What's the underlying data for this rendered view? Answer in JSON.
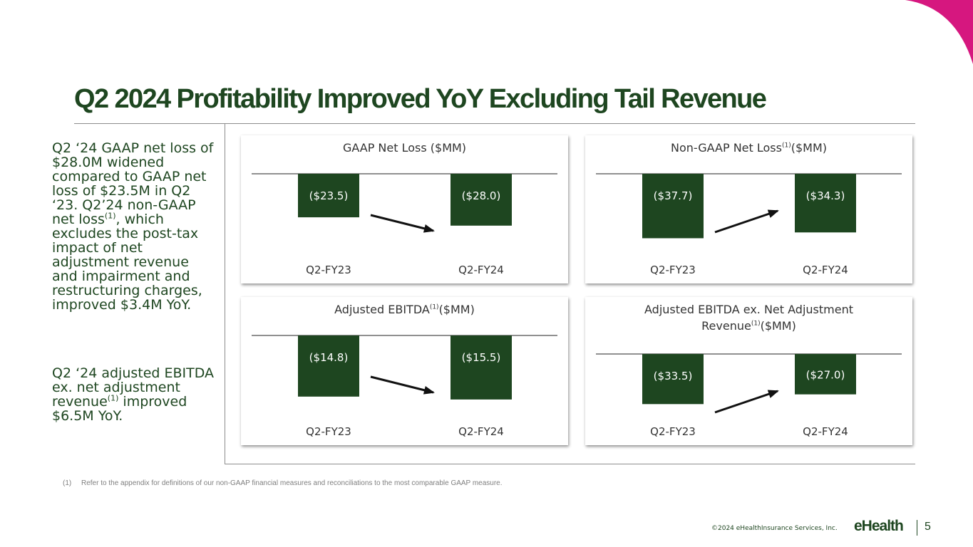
{
  "title": "Q2 2024 Profitability Improved YoY Excluding Tail Revenue",
  "bullets": [
    {
      "text_before": "Q2 ‘24 GAAP net loss of $28.0M widened compared to GAAP net loss of $23.5M in Q2 ‘23.  Q2’24 non-GAAP net loss",
      "sup": "(1)",
      "text_after": ", which excludes the post-tax impact of net adjustment revenue and impairment and restructuring charges, improved $3.4M YoY."
    },
    {
      "text_before": "Q2 ‘24 adjusted EBITDA ex. net adjustment revenue",
      "sup": "(1)",
      "text_after": " improved $6.5M YoY."
    }
  ],
  "chart_data": [
    {
      "type": "bar",
      "title": "GAAP Net Loss ($MM)",
      "title_sup": "",
      "categories": [
        "Q2-FY23",
        "Q2-FY24"
      ],
      "values": [
        -23.5,
        -28.0
      ],
      "value_labels": [
        "($23.5)",
        "($28.0)"
      ],
      "arrow": "down"
    },
    {
      "type": "bar",
      "title": "Non-GAAP Net Loss",
      "title_sup": "(1)",
      "title_after": "($MM)",
      "categories": [
        "Q2-FY23",
        "Q2-FY24"
      ],
      "values": [
        -37.7,
        -34.3
      ],
      "value_labels": [
        "($37.7)",
        "($34.3)"
      ],
      "arrow": "up"
    },
    {
      "type": "bar",
      "title": "Adjusted EBITDA",
      "title_sup": "(1)",
      "title_after": "($MM)",
      "categories": [
        "Q2-FY23",
        "Q2-FY24"
      ],
      "values": [
        -14.8,
        -15.5
      ],
      "value_labels": [
        "($14.8)",
        "($15.5)"
      ],
      "arrow": "down"
    },
    {
      "type": "bar",
      "title": "Adjusted EBITDA ex. Net Adjustment",
      "title_line2": "Revenue",
      "title_sup": "(1)",
      "title_after": "($MM)",
      "categories": [
        "Q2-FY23",
        "Q2-FY24"
      ],
      "values": [
        -33.5,
        -27.0
      ],
      "value_labels": [
        "($33.5)",
        "($27.0)"
      ],
      "arrow": "up"
    }
  ],
  "footnote": {
    "mark": "(1)",
    "text": "Refer to the appendix for definitions of our non-GAAP financial measures and reconciliations to the most comparable GAAP measure."
  },
  "footer": {
    "copyright": "©2024 eHealthInsurance Services, Inc.",
    "brand": "eHealth",
    "page": "5"
  },
  "colors": {
    "bar": "#1e4620",
    "arrow": "#111111",
    "accent": "#d6177f"
  }
}
